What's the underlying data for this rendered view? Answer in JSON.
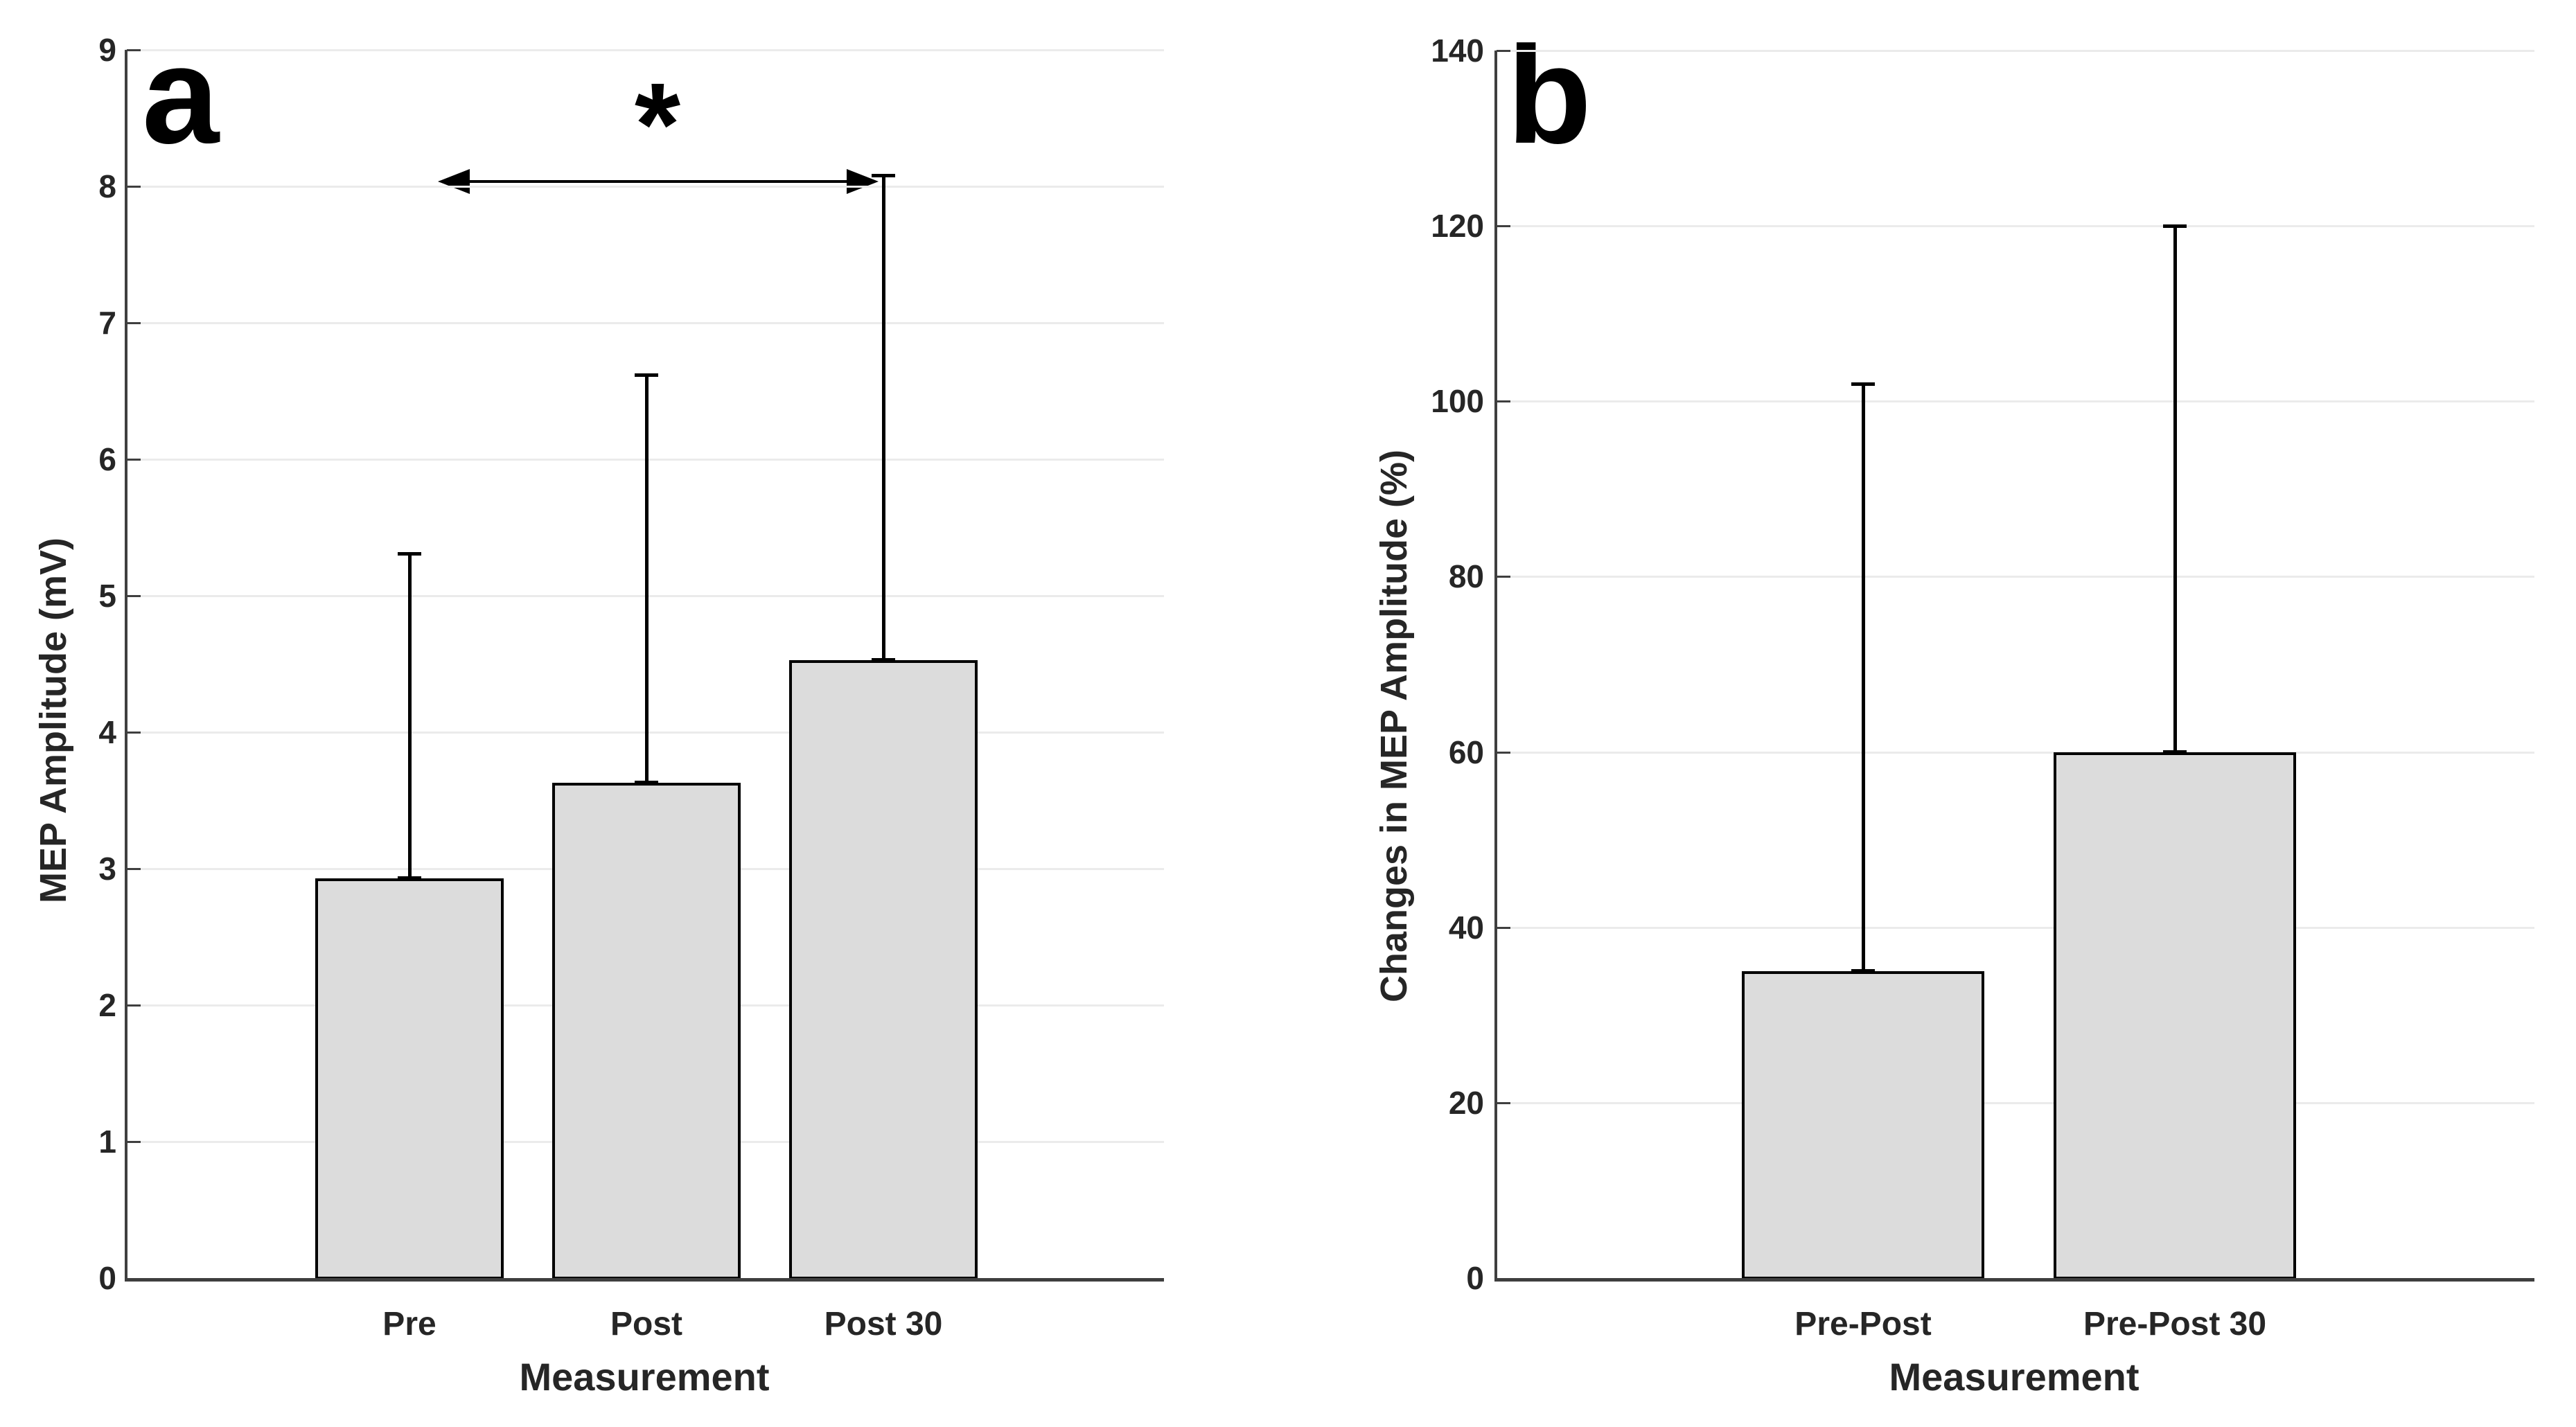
{
  "figure": {
    "background": "#ffffff",
    "text_color": "#262626",
    "panels": [
      {
        "label": "a"
      },
      {
        "label": "b"
      }
    ]
  },
  "chart_data": [
    {
      "type": "bar",
      "panel": "a",
      "title": "",
      "categories": [
        "Pre",
        "Post",
        "Post 30"
      ],
      "values": [
        2.93,
        3.63,
        4.53
      ],
      "upper_errors": [
        2.4,
        3.0,
        3.55
      ],
      "error_bar_tops": [
        5.31,
        6.62,
        8.08
      ],
      "xlabel": "Measurement",
      "ylabel": "MEP Amplitude (mV)",
      "ylim": [
        0,
        9
      ],
      "yticks": [
        0,
        1,
        2,
        3,
        4,
        5,
        6,
        7,
        8,
        9
      ],
      "grid": true,
      "legend": "none",
      "bar_color": "#dcdcdc",
      "bar_edge_color": "#000000",
      "error_color": "#000000",
      "significance": {
        "symbol": "*",
        "from": "Pre",
        "to": "Post 30"
      }
    },
    {
      "type": "bar",
      "panel": "b",
      "title": "",
      "categories": [
        "Pre-Post",
        "Pre-Post 30"
      ],
      "values": [
        35,
        60
      ],
      "upper_errors": [
        66.5,
        60
      ],
      "error_bar_tops": [
        102,
        120
      ],
      "xlabel": "Measurement",
      "ylabel": "Changes in MEP Amplitude (%)",
      "ylim": [
        0,
        140
      ],
      "yticks": [
        0,
        20,
        40,
        60,
        80,
        100,
        120,
        140
      ],
      "grid": true,
      "legend": "none",
      "bar_color": "#dcdcdc",
      "bar_edge_color": "#000000",
      "error_color": "#000000"
    }
  ]
}
